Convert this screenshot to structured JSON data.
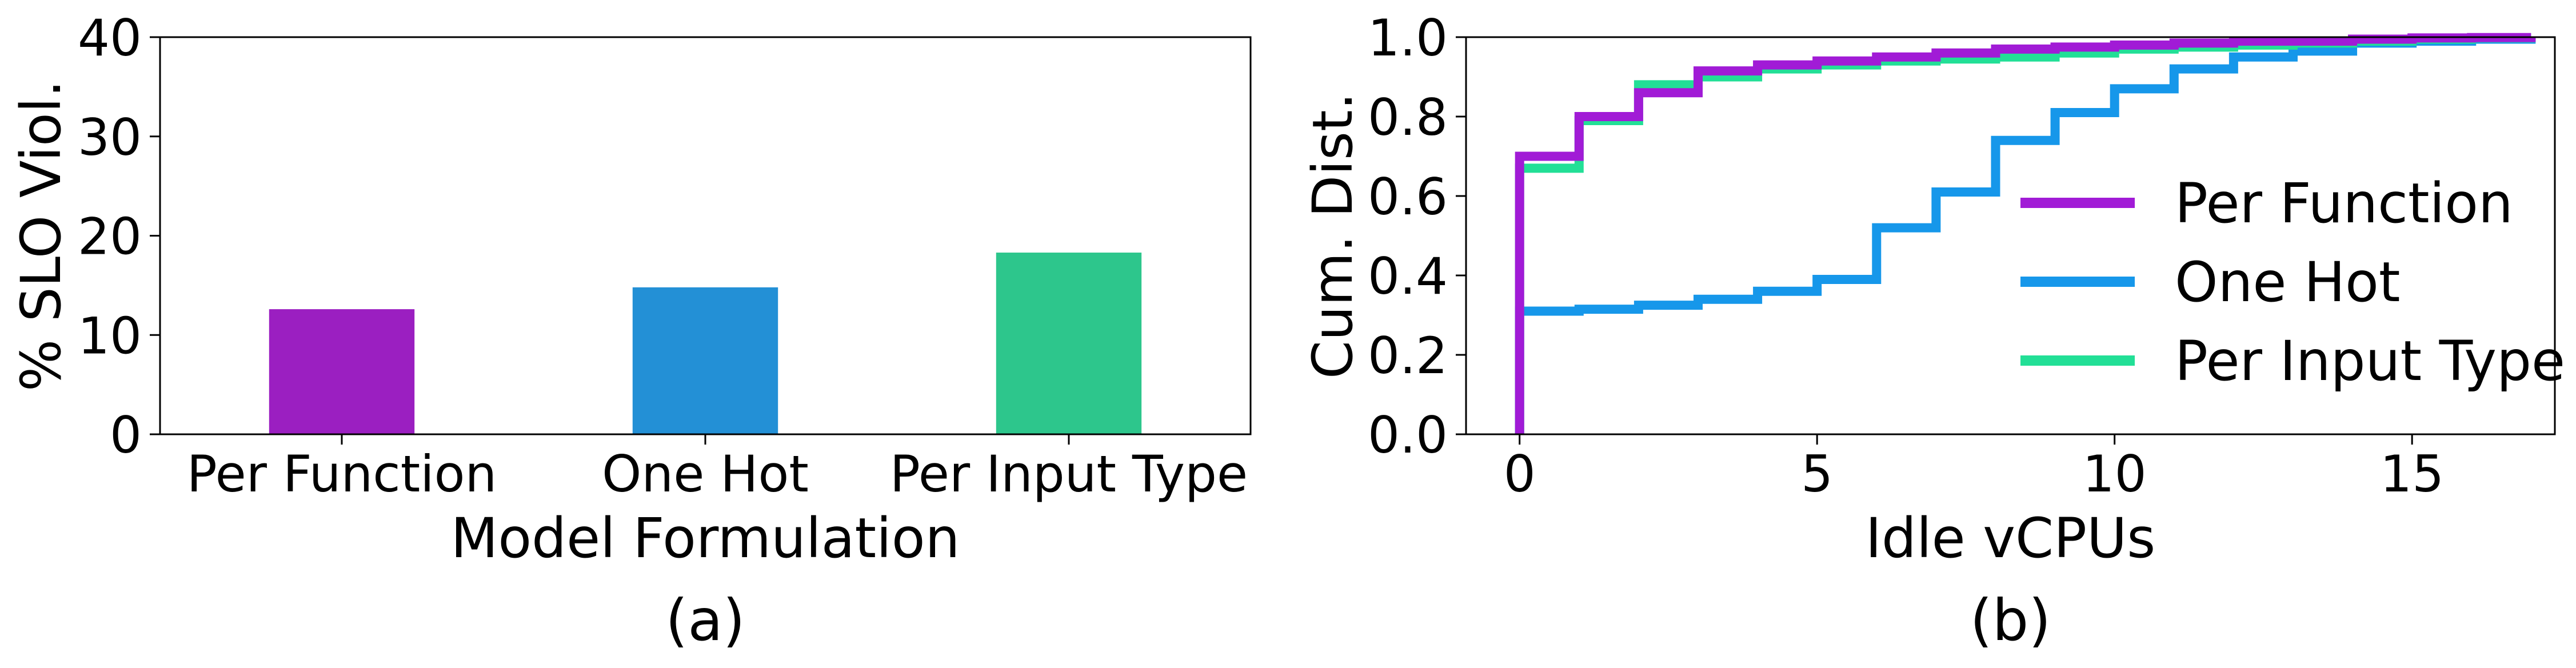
{
  "figure": {
    "caption_a": "(a)",
    "caption_b": "(b)"
  },
  "chart_data": [
    {
      "type": "bar",
      "categories": [
        "Per Function",
        "One Hot",
        "Per Input Type"
      ],
      "values": [
        12.6,
        14.8,
        18.3
      ],
      "colors": [
        "#9b1fc1",
        "#2390d6",
        "#2dc68c"
      ],
      "title": "",
      "xlabel": "Model Formulation",
      "ylabel": "% SLO Viol.",
      "ylim": [
        0,
        40
      ],
      "yticks": [
        "0",
        "10",
        "20",
        "30",
        "40"
      ],
      "grid": false
    },
    {
      "type": "line",
      "title": "",
      "xlabel": "Idle vCPUs",
      "ylabel": "Cum. Dist.",
      "xlim": [
        -0.9,
        17.4
      ],
      "ylim": [
        0,
        1
      ],
      "xticks": [
        "0",
        "5",
        "10",
        "15"
      ],
      "yticks": [
        "0.0",
        "0.2",
        "0.4",
        "0.6",
        "0.8",
        "1.0"
      ],
      "legend_position": "center-right",
      "grid": false,
      "series": [
        {
          "name": "Per Function",
          "color": "#a11bd6",
          "x": [
            0,
            1,
            2,
            3,
            4,
            5,
            6,
            7,
            8,
            9,
            10,
            11,
            12,
            13,
            14,
            15,
            16,
            17
          ],
          "y": [
            0.7,
            0.8,
            0.86,
            0.915,
            0.93,
            0.94,
            0.95,
            0.96,
            0.97,
            0.975,
            0.98,
            0.985,
            0.99,
            0.99,
            0.995,
            0.998,
            0.999,
            1.0
          ]
        },
        {
          "name": "One Hot",
          "color": "#1697ea",
          "x": [
            0,
            1,
            2,
            3,
            4,
            5,
            6,
            7,
            8,
            9,
            10,
            11,
            12,
            13,
            14,
            15,
            16,
            17
          ],
          "y": [
            0.31,
            0.315,
            0.325,
            0.34,
            0.36,
            0.39,
            0.52,
            0.61,
            0.74,
            0.81,
            0.87,
            0.92,
            0.95,
            0.965,
            0.985,
            0.99,
            0.995,
            1.0
          ]
        },
        {
          "name": "Per Input Type",
          "color": "#22df96",
          "x": [
            0,
            1,
            2,
            3,
            4,
            5,
            6,
            7,
            8,
            9,
            10,
            11,
            12,
            13,
            14,
            15,
            16,
            17
          ],
          "y": [
            0.67,
            0.79,
            0.88,
            0.9,
            0.92,
            0.93,
            0.94,
            0.945,
            0.95,
            0.96,
            0.97,
            0.975,
            0.98,
            0.985,
            0.99,
            0.995,
            0.998,
            1.0
          ]
        }
      ]
    }
  ]
}
